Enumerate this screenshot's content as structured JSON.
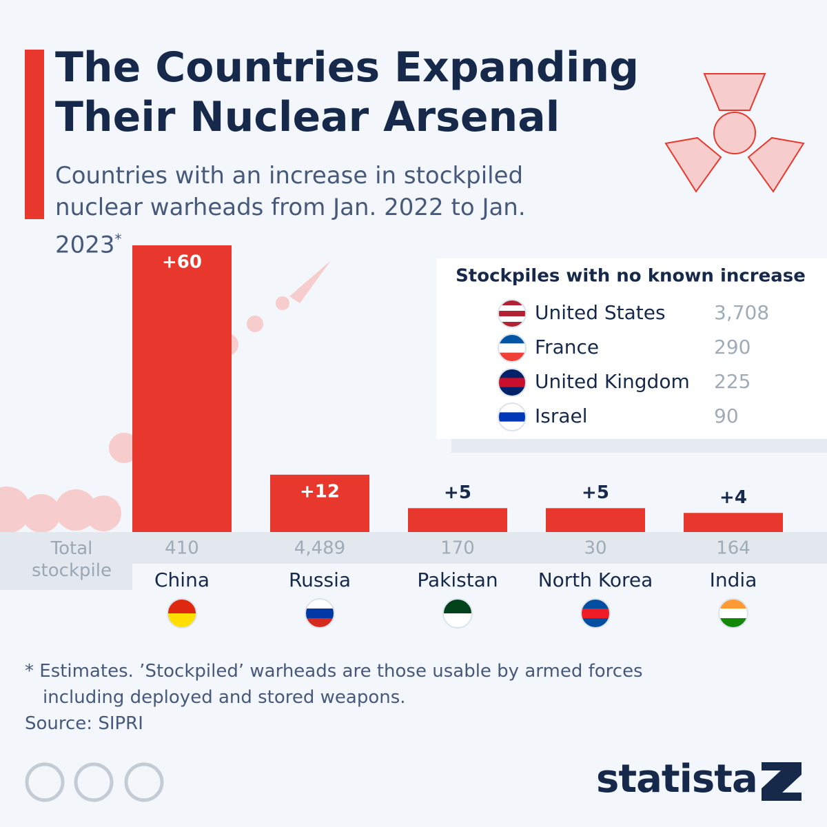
{
  "chart_data": {
    "type": "bar",
    "title": "The Countries Expanding Their Nuclear Arsenal",
    "subtitle": "Countries with an increase in stockpiled nuclear warheads from Jan. 2022 to Jan. 2023",
    "subtitle_marker": "*",
    "categories": [
      "China",
      "Russia",
      "Pakistan",
      "North Korea",
      "India"
    ],
    "values": [
      60,
      12,
      5,
      5,
      4
    ],
    "value_labels": [
      "+60",
      "+12",
      "+5",
      "+5",
      "+4"
    ],
    "color": "#e8372c",
    "ylim": [
      0,
      60
    ],
    "totals": {
      "label": "Total stockpile",
      "values": [
        410,
        4489,
        170,
        30,
        164
      ],
      "value_labels": [
        "410",
        "4,489",
        "170",
        "30",
        "164"
      ]
    },
    "no_increase": {
      "title": "Stockpiles with no known increase",
      "countries": [
        "United States",
        "France",
        "United Kingdom",
        "Israel"
      ],
      "values": [
        3708,
        290,
        225,
        90
      ],
      "value_labels": [
        "3,708",
        "290",
        "225",
        "90"
      ]
    },
    "footnote": "* Estimates. ’Stockpiled’ warheads are those usable by armed forces including deployed and stored weapons.",
    "source": "Source: SIPRI",
    "brand": "statista"
  }
}
